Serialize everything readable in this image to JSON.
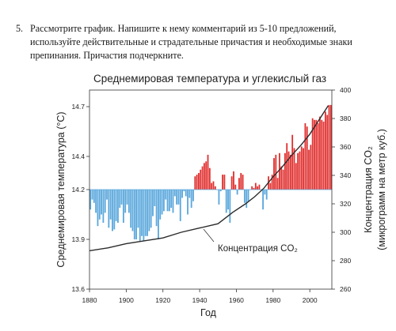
{
  "task": {
    "number": "5.",
    "lines": [
      "Рассмотрите график.  Напишите к нему комментарий из 5-10 предложений,",
      "используйте действительные и страдательные причастия и необходимые знаки",
      "препинания. Причастия подчеркните."
    ]
  },
  "chart_data": {
    "type": "bar",
    "title": "Среднемировая температура и углекислый газ",
    "xlabel": "Год",
    "ylabel": "Среднемировая температура (°C)",
    "y2label_line1": "Концентрация CO₂",
    "y2label_line2": "(микрограмм на метр куб.)",
    "xlim": [
      1880,
      2012
    ],
    "ylim": [
      13.6,
      14.8
    ],
    "y2lim": [
      260,
      400
    ],
    "baseline": 14.2,
    "xticks": [
      "1880",
      "1900",
      "1920",
      "1940",
      "1960",
      "1980",
      "2000"
    ],
    "yticks": [
      "14.7",
      "14.4",
      "14.2",
      "13.9",
      "13.6"
    ],
    "y2ticks": [
      "400",
      "380",
      "360",
      "340",
      "320",
      "300",
      "280",
      "260"
    ],
    "colors": {
      "above": "#e0302f",
      "below": "#5aa7dc",
      "line": "#2b2b2b"
    },
    "series": [
      {
        "name": "temperature",
        "years_start": 1880,
        "values": [
          14.08,
          14.14,
          14.12,
          14.06,
          13.98,
          14.02,
          14.05,
          14.0,
          14.06,
          14.14,
          13.97,
          14.02,
          13.95,
          13.96,
          14.01,
          14.0,
          14.09,
          14.11,
          14.0,
          14.06,
          14.11,
          14.06,
          13.97,
          13.95,
          13.9,
          13.9,
          13.97,
          13.89,
          13.92,
          13.89,
          13.92,
          13.92,
          13.95,
          13.97,
          14.04,
          14.1,
          13.98,
          13.9,
          14.02,
          14.05,
          14.07,
          14.14,
          14.07,
          14.07,
          14.09,
          14.06,
          14.16,
          14.11,
          14.11,
          14.01,
          14.15,
          14.19,
          14.16,
          14.05,
          14.15,
          14.09,
          14.13,
          14.28,
          14.29,
          14.3,
          14.32,
          14.34,
          14.36,
          14.37,
          14.41,
          14.33,
          14.24,
          14.25,
          14.22,
          14.2,
          14.11,
          14.19,
          14.29,
          14.29,
          14.06,
          14.08,
          14.0,
          14.28,
          14.31,
          14.23,
          14.17,
          14.27,
          14.3,
          14.29,
          14.12,
          14.09,
          14.13,
          14.2,
          14.22,
          14.21,
          14.24,
          14.22,
          14.23,
          14.2,
          14.08,
          14.17,
          14.14,
          14.28,
          14.24,
          14.29,
          14.39,
          14.41,
          14.27,
          14.42,
          14.34,
          14.32,
          14.42,
          14.48,
          14.43,
          14.41,
          14.53,
          14.45,
          14.36,
          14.42,
          14.43,
          14.46,
          14.45,
          14.6,
          14.58,
          14.44,
          14.47,
          14.63,
          14.62,
          14.62,
          14.6,
          14.64,
          14.62,
          14.61,
          14.67,
          14.65,
          14.71,
          14.71
        ]
      },
      {
        "name": "Концентрация CO₂",
        "x": [
          1880,
          1890,
          1900,
          1910,
          1920,
          1930,
          1940,
          1950,
          1958,
          1965,
          1970,
          1975,
          1980,
          1985,
          1990,
          1995,
          2000,
          2005,
          2010
        ],
        "y": [
          287,
          289,
          292,
          294,
          296,
          300,
          303,
          306,
          314,
          320,
          325,
          331,
          339,
          346,
          354,
          361,
          369,
          379,
          389
        ]
      }
    ],
    "annotation": "Концентрация CO₂"
  }
}
